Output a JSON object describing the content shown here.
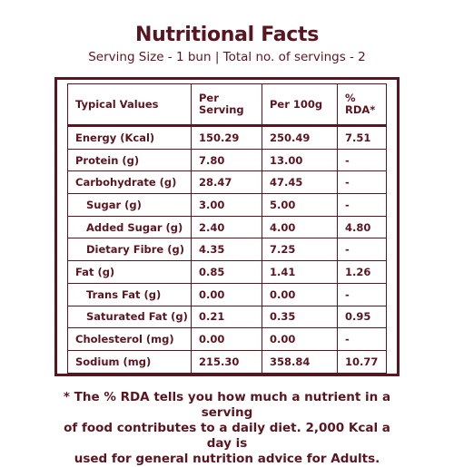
{
  "title": "Nutritional Facts",
  "subtitle": "Serving Size - 1 bun  | Total no. of servings - 2",
  "table": {
    "headers": [
      "Typical Values",
      "Per Serving",
      "Per 100g",
      "% RDA*"
    ],
    "rows": [
      {
        "label": "Energy (Kcal)",
        "per_serving": "150.29",
        "per_100g": "250.49",
        "rda": "7.51",
        "sub": false
      },
      {
        "label": "Protein (g)",
        "per_serving": "7.80",
        "per_100g": "13.00",
        "rda": "-",
        "sub": false
      },
      {
        "label": "Carbohydrate (g)",
        "per_serving": "28.47",
        "per_100g": "47.45",
        "rda": "-",
        "sub": false
      },
      {
        "label": "Sugar (g)",
        "per_serving": "3.00",
        "per_100g": "5.00",
        "rda": "-",
        "sub": true
      },
      {
        "label": "Added Sugar (g)",
        "per_serving": "2.40",
        "per_100g": "4.00",
        "rda": "4.80",
        "sub": true
      },
      {
        "label": "Dietary Fibre (g)",
        "per_serving": "4.35",
        "per_100g": "7.25",
        "rda": "-",
        "sub": true
      },
      {
        "label": "Fat (g)",
        "per_serving": "0.85",
        "per_100g": "1.41",
        "rda": "1.26",
        "sub": false
      },
      {
        "label": "Trans Fat (g)",
        "per_serving": "0.00",
        "per_100g": "0.00",
        "rda": "-",
        "sub": true
      },
      {
        "label": "Saturated Fat (g)",
        "per_serving": "0.21",
        "per_100g": "0.35",
        "rda": "0.95",
        "sub": true
      },
      {
        "label": "Cholesterol (mg)",
        "per_serving": "0.00",
        "per_100g": "0.00",
        "rda": "-",
        "sub": false
      },
      {
        "label": "Sodium (mg)",
        "per_serving": "215.30",
        "per_100g": "358.84",
        "rda": "10.77",
        "sub": false
      }
    ]
  },
  "footnote": {
    "line1": "* The % RDA tells you how much a nutrient in a serving",
    "line2": "of  food contributes to a daily diet. 2,000 Kcal a day is",
    "line3": "used for general nutrition advice for Adults."
  },
  "colors": {
    "text": "#5a1620",
    "border": "#5a1620",
    "background": "#ffffff"
  }
}
